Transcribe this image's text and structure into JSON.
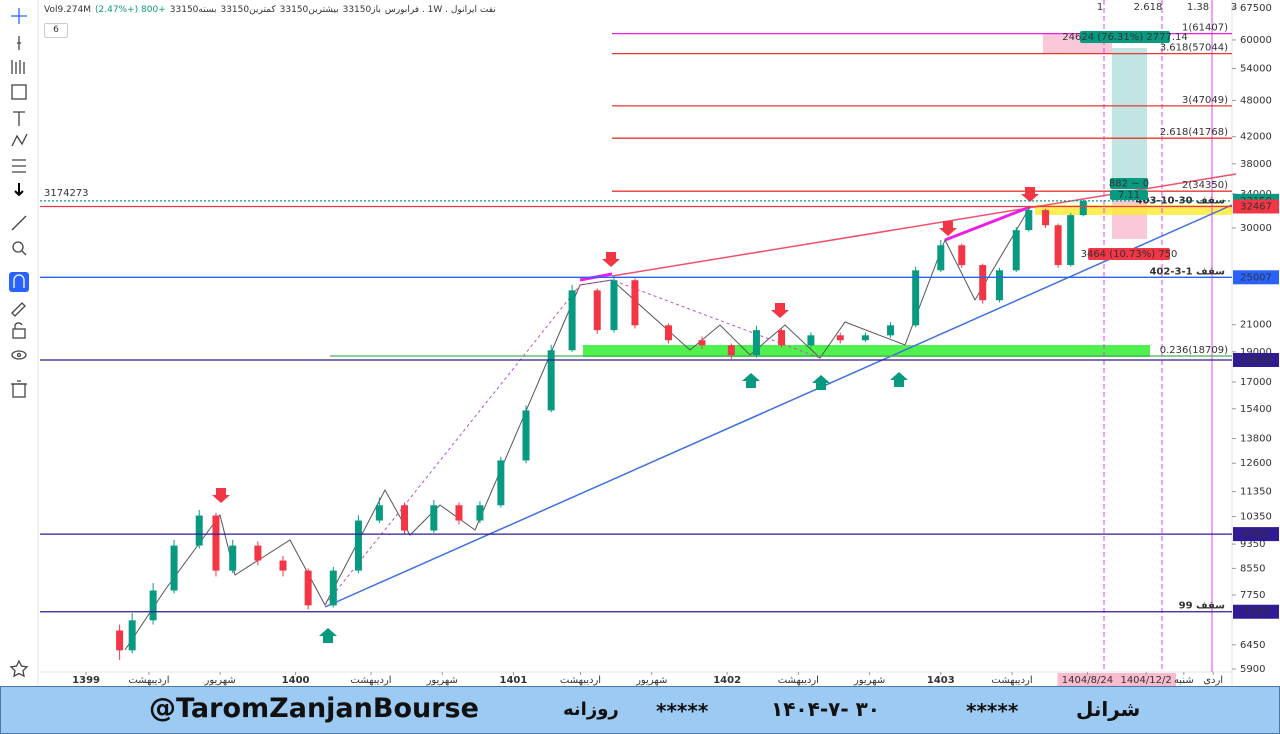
{
  "header": {
    "symbol": "نفت ایرانول . 1W . فرابورس",
    "open": "باز33150",
    "high": "بیشترین33150",
    "low": "کمترین33150",
    "close": "بسته33150",
    "change": "+800 (+2.47%)",
    "volume": "Vol9.274M",
    "indicator_count": "6"
  },
  "chart_data": {
    "type": "candlestick",
    "x": [
      19,
      22,
      27,
      32,
      38,
      42,
      46,
      52,
      58,
      64,
      70,
      76,
      81,
      87,
      94,
      100,
      105,
      110,
      116,
      122,
      127,
      133,
      137,
      142,
      150,
      158,
      165,
      171,
      177,
      184,
      191,
      197,
      203,
      209,
      215,
      220,
      225,
      229,
      233,
      236,
      240,
      243,
      246,
      249
    ],
    "open": [
      6800,
      6320,
      7060,
      7880,
      9300,
      10390,
      8480,
      9300,
      8800,
      8480,
      7460,
      8480,
      10200,
      10790,
      9830,
      10790,
      10200,
      10790,
      12730,
      15310,
      19110,
      23830,
      20580,
      24740,
      20950,
      19830,
      19460,
      18770,
      20580,
      19460,
      20190,
      19830,
      20190,
      20950,
      25660,
      28140,
      26160,
      22980,
      25660,
      29760,
      32040,
      30300,
      26160,
      31450
    ],
    "high": [
      6950,
      7250,
      8100,
      9500,
      10600,
      10500,
      9500,
      9450,
      8950,
      8550,
      8600,
      10400,
      11100,
      10900,
      11000,
      10900,
      10950,
      12900,
      15600,
      19500,
      24300,
      24000,
      25100,
      24900,
      21100,
      20100,
      19600,
      20900,
      20700,
      20400,
      20400,
      20400,
      21200,
      26000,
      28700,
      28300,
      26300,
      25900,
      30100,
      32500,
      32200,
      30500,
      31700,
      33300
    ],
    "low": [
      6100,
      6250,
      6950,
      7800,
      9200,
      8300,
      8400,
      8650,
      8300,
      7350,
      7400,
      8400,
      10100,
      9700,
      9750,
      10050,
      10100,
      10700,
      12600,
      15200,
      19000,
      20300,
      20400,
      20700,
      19600,
      19200,
      18500,
      18600,
      19300,
      19300,
      19600,
      19700,
      20000,
      20800,
      25500,
      25900,
      22700,
      22800,
      25500,
      29600,
      30000,
      25900,
      26000,
      31300
    ],
    "close": [
      6320,
      7060,
      7880,
      9300,
      10390,
      8480,
      9300,
      8800,
      8480,
      7460,
      8480,
      10200,
      10790,
      9830,
      10790,
      10200,
      10790,
      12730,
      15310,
      19110,
      23830,
      20580,
      24740,
      20950,
      19830,
      19460,
      18770,
      20580,
      19460,
      20190,
      19830,
      20190,
      20950,
      25660,
      28140,
      26160,
      22980,
      25660,
      29760,
      32040,
      30300,
      26160,
      31450,
      33150
    ],
    "up_color": "#089981",
    "down_color": "#f23645",
    "log_scale": true,
    "ylim": [
      5835,
      69520
    ],
    "yticks": [
      67500,
      60000,
      54000,
      48000,
      42000,
      38000,
      34000,
      30000,
      21000,
      19000,
      17000,
      15400,
      13800,
      12600,
      11350,
      10350,
      9350,
      8550,
      7750,
      6450,
      5900
    ],
    "xlim": [
      0,
      284.5
    ],
    "xticks": [
      {
        "value": 11,
        "label": "1399"
      },
      {
        "value": 26,
        "label": "اردیبهشت"
      },
      {
        "value": 43,
        "label": "شهریور"
      },
      {
        "value": 61,
        "label": "1400"
      },
      {
        "value": 79,
        "label": "اردیبهشت"
      },
      {
        "value": 96,
        "label": "شهریور"
      },
      {
        "value": 113,
        "label": "1401"
      },
      {
        "value": 129,
        "label": "اردیبهشت"
      },
      {
        "value": 146,
        "label": "شهریور"
      },
      {
        "value": 164,
        "label": "1402"
      },
      {
        "value": 181,
        "label": "اردیبهشت"
      },
      {
        "value": 198,
        "label": "شهریور"
      },
      {
        "value": 215,
        "label": "1403"
      },
      {
        "value": 232,
        "label": "اردیبهشت"
      },
      {
        "value": 250,
        "label": "1404/8/24"
      },
      {
        "value": 264,
        "label": "1404/12/2"
      },
      {
        "value": 273,
        "label": "شنبه"
      },
      {
        "value": 280,
        "label": "اردی"
      }
    ],
    "price_lines": [
      {
        "value": 33150,
        "color": "#089981"
      },
      {
        "value": 32467,
        "color": "#f23645",
        "note": "سقف 30-10-403"
      },
      {
        "value": 25007,
        "color": "#2962ff",
        "note": "سقف 1-3-402"
      },
      {
        "value": 18436,
        "color": "#311b92"
      },
      {
        "value": 9702,
        "color": "#311b92"
      },
      {
        "value": 7287,
        "color": "#311b92",
        "note": "سقف 99"
      }
    ],
    "levels": [
      {
        "value": 61407,
        "label": "1(61407)",
        "color": "#e91ee9"
      },
      {
        "value": 57044,
        "label": "3.618(57044)",
        "color": "#e53935"
      },
      {
        "value": 47049,
        "label": "3(47049)",
        "color": "#e53935"
      },
      {
        "value": 41768,
        "label": "2.618(41768)",
        "color": "#e53935"
      },
      {
        "value": 34350,
        "label": "2(34350)",
        "color": "#e53935"
      },
      {
        "value": 18709,
        "label": "0.236(18709)",
        "color": "#4caf50"
      }
    ],
    "annotations": [
      "24624 (76.31%) 2777.14",
      "882 ~ 0",
      "7.11",
      "3464 (10.73%) 750"
    ],
    "fib_time_labels": [
      "1",
      "2.618",
      "1.38",
      "3"
    ],
    "left_label": "3174273"
  },
  "footer": {
    "handle": "@TaromZanjanBourse",
    "period": "روزانه",
    "stars_left": "*****",
    "date": "۱۴۰۴-۷- ۳۰",
    "stars_right": "*****",
    "name": "شرانل"
  }
}
